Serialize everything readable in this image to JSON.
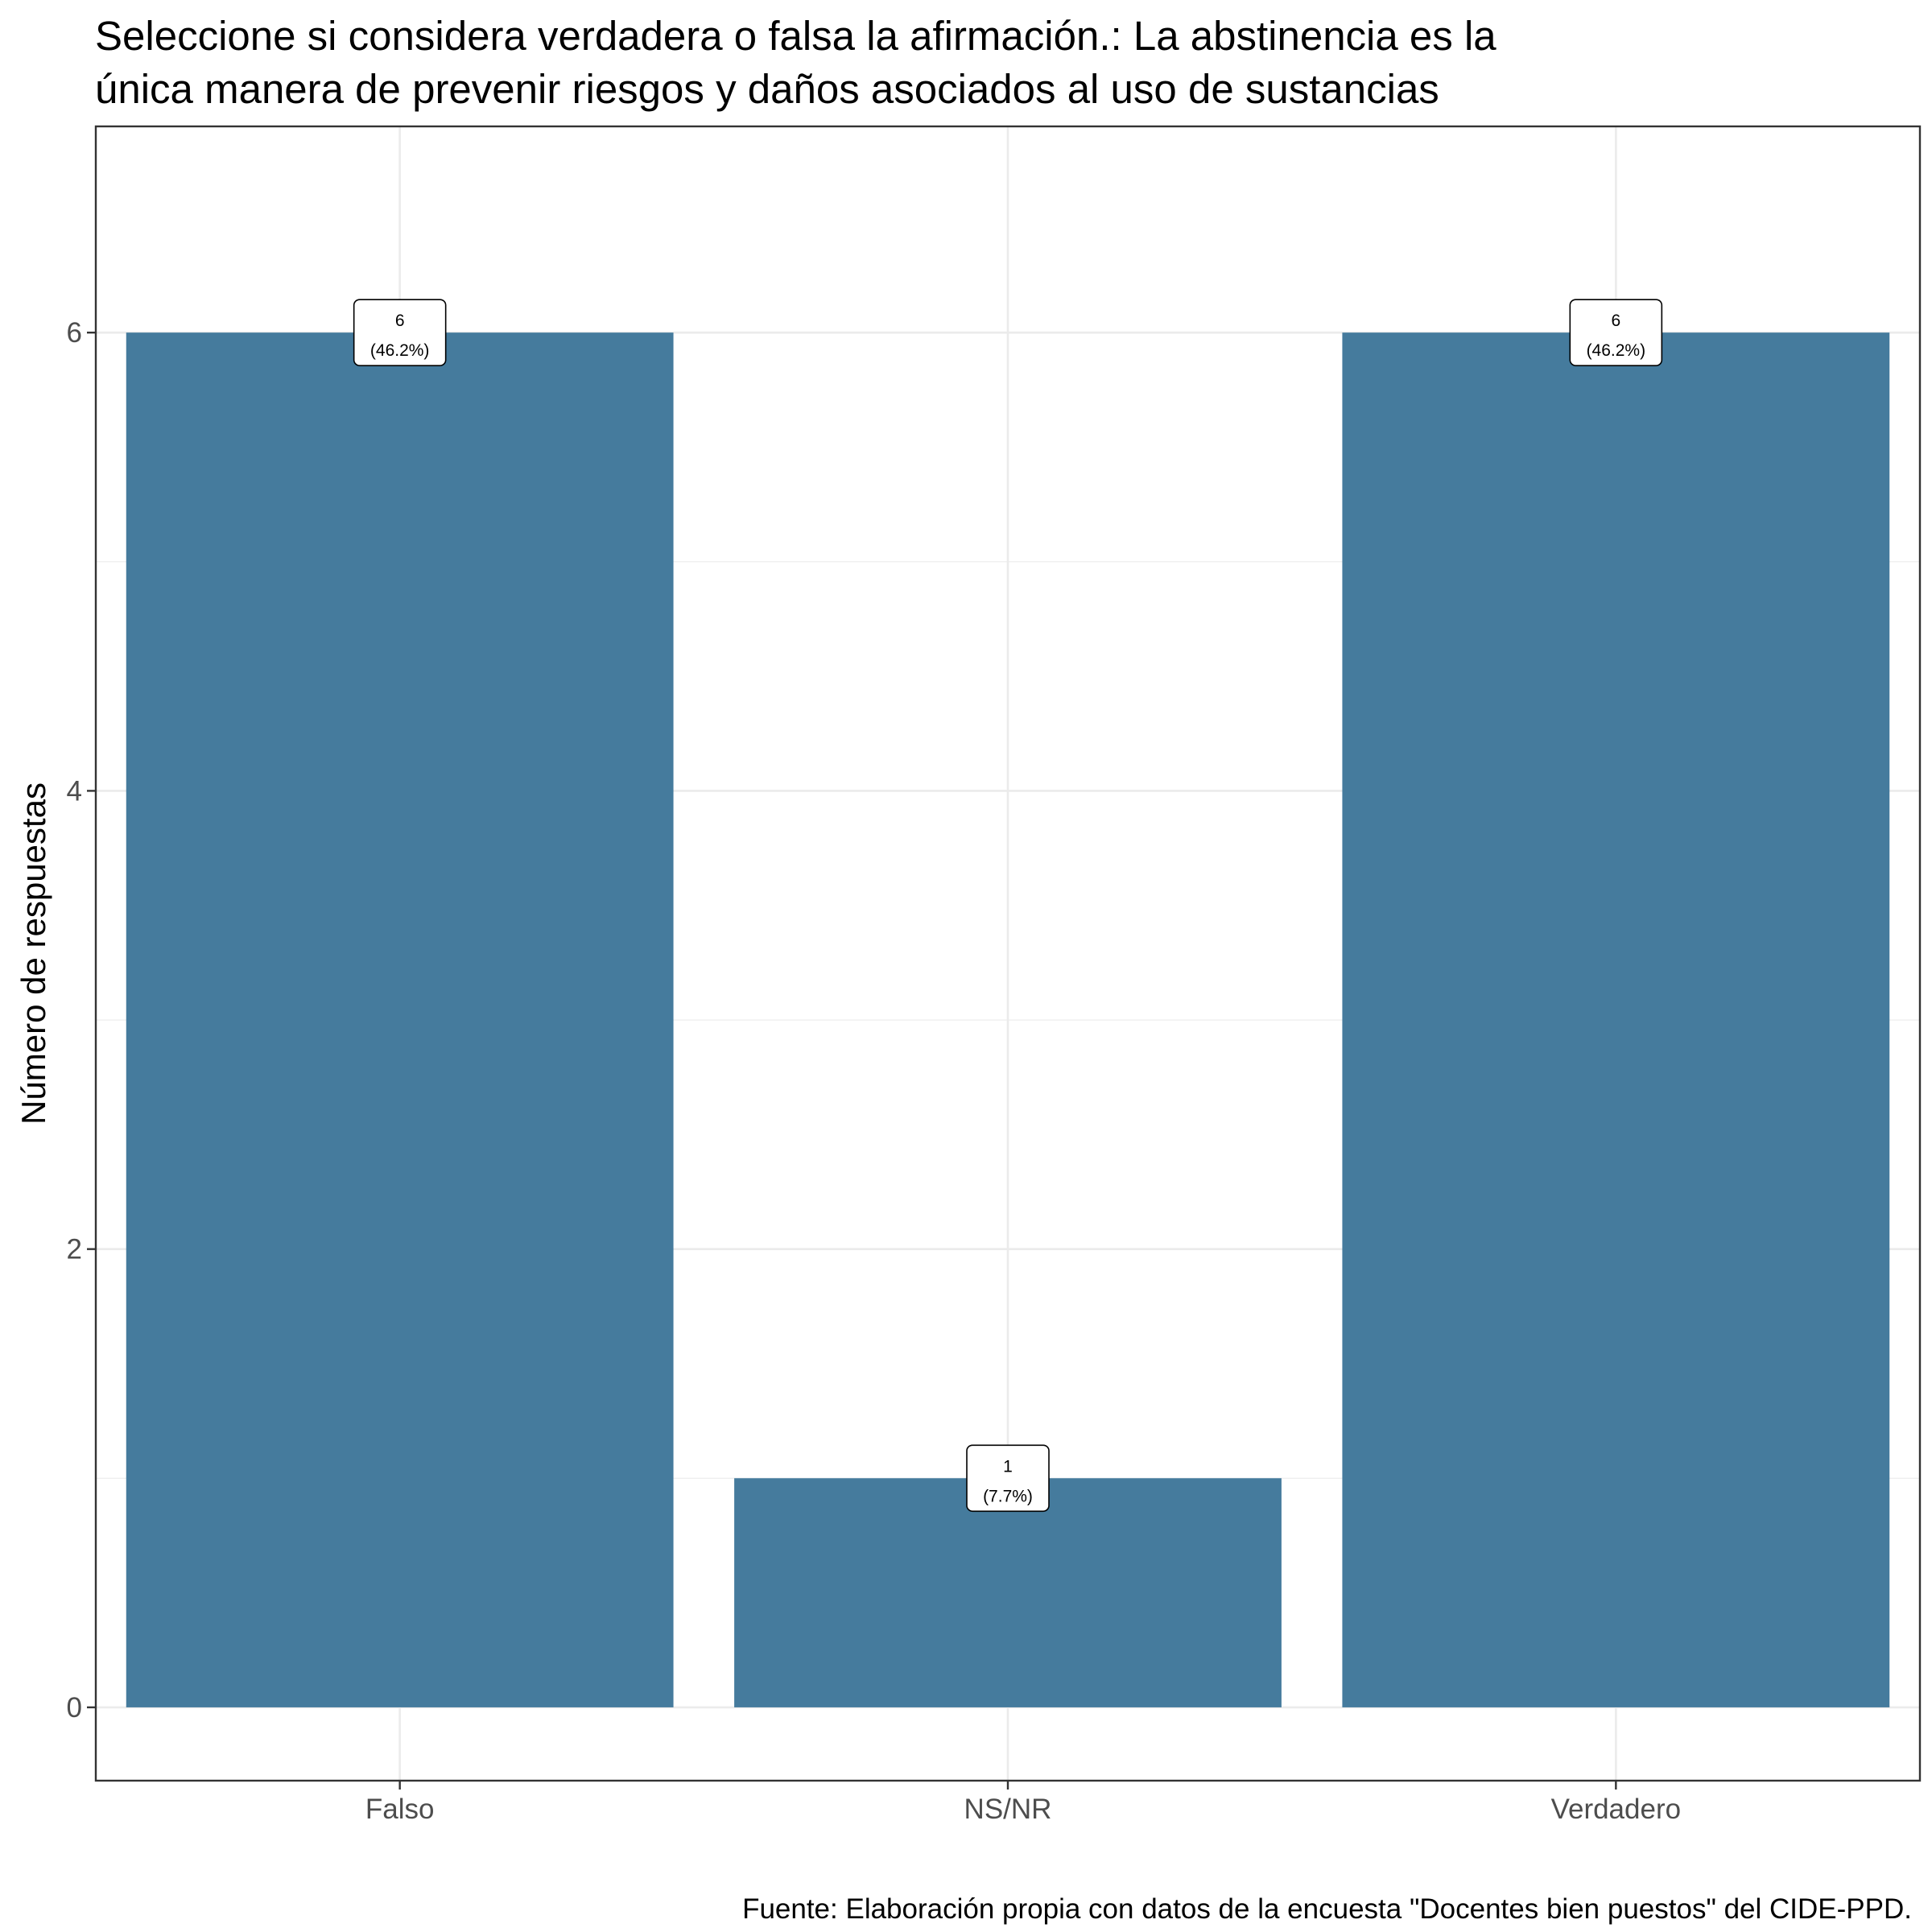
{
  "chart_data": {
    "type": "bar",
    "title": [
      "Seleccione si considera verdadera o falsa la afirmación.: La abstinencia es la",
      "única manera de prevenir riesgos y daños asociados al uso de sustancias"
    ],
    "categories": [
      "Falso",
      "NS/NR",
      "Verdadero"
    ],
    "values": [
      6,
      1,
      6
    ],
    "data_labels": [
      {
        "count": "6",
        "percent": "(46.2%)"
      },
      {
        "count": "1",
        "percent": "(7.7%)"
      },
      {
        "count": "6",
        "percent": "(46.2%)"
      }
    ],
    "xlabel": "",
    "ylabel": "Número de respuestas",
    "yticks": [
      0,
      2,
      4,
      6
    ],
    "ylim": [
      -0.32,
      6.9
    ],
    "grid": true,
    "bar_color": "#457b9d",
    "caption": "Fuente: Elaboración propia con datos de la encuesta \"Docentes bien puestos\" del CIDE-PPD."
  }
}
